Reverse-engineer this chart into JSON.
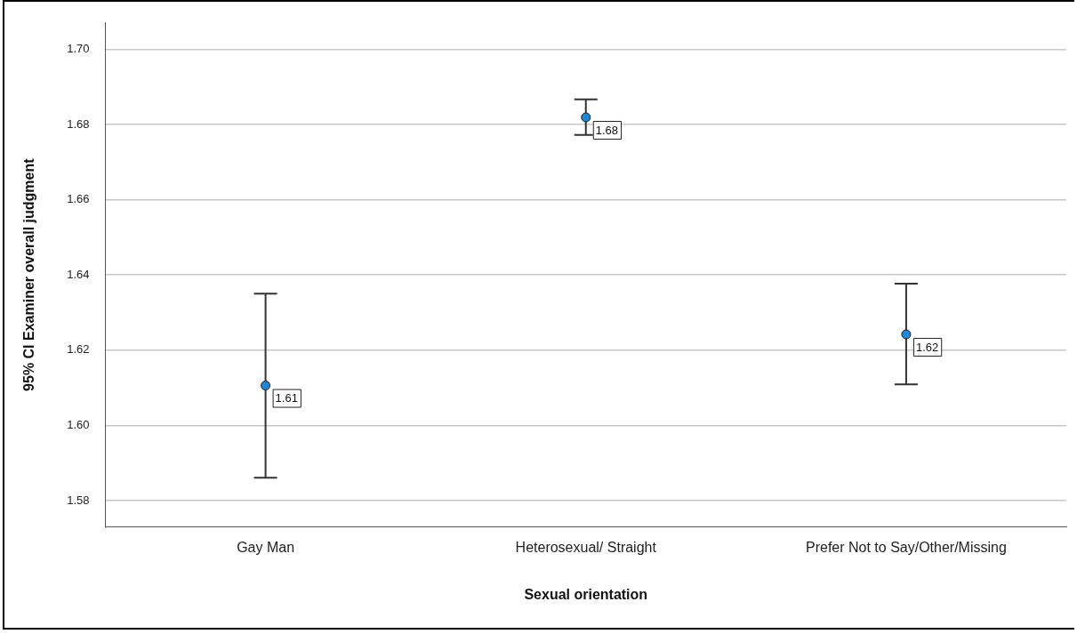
{
  "chart_data": {
    "type": "scatter",
    "xlabel": "Sexual orientation",
    "ylabel": "95% CI Examiner overall judgment",
    "categories": [
      "Gay Man",
      "Heterosexual/ Straight",
      "Prefer Not to Say/Other/Missing"
    ],
    "color": "#1e88d8",
    "values": [
      1.6106,
      1.6819,
      1.6242
    ],
    "errors": [
      [
        1.5861,
        1.635
      ],
      [
        1.6772,
        1.6867
      ],
      [
        1.6109,
        1.6377
      ]
    ],
    "value_labels": [
      "1.61",
      "1.68",
      "1.62"
    ],
    "ylim": [
      1.573,
      1.707
    ],
    "yticks": [
      {
        "value": 1.58,
        "label": "1.58"
      },
      {
        "value": 1.6,
        "label": "1.60"
      },
      {
        "value": 1.62,
        "label": "1.62"
      },
      {
        "value": 1.64,
        "label": "1.64"
      },
      {
        "value": 1.66,
        "label": "1.66"
      },
      {
        "value": 1.68,
        "label": "1.68"
      },
      {
        "value": 1.7,
        "label": "1.70"
      }
    ],
    "grid": "y",
    "legend": false,
    "marker": "circle"
  }
}
